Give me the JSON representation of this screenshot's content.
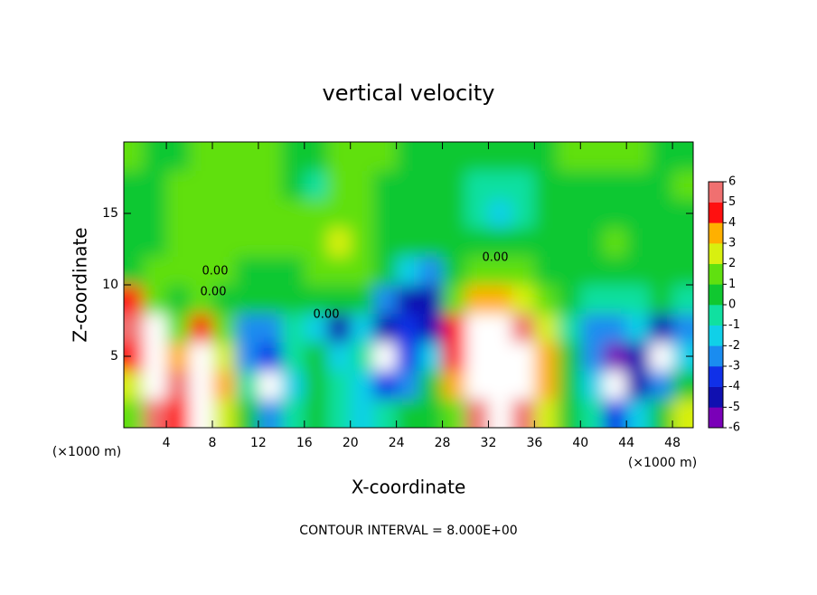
{
  "chart_data": {
    "type": "contour",
    "title": "vertical velocity",
    "xlabel": "X-coordinate",
    "ylabel": "Z-coordinate",
    "x_unit_label": "(×1000 m)",
    "y_unit_label": "(×1000 m)",
    "footnote": "CONTOUR INTERVAL = 8.000E+00",
    "contour_labels": [
      "0.00",
      "0.00",
      "0.00",
      "0.00"
    ],
    "xlim": [
      0.3,
      49.8
    ],
    "ylim": [
      0,
      20
    ],
    "xticks": [
      4,
      8,
      12,
      16,
      20,
      24,
      28,
      32,
      36,
      40,
      44,
      48
    ],
    "yticks": [
      5,
      10,
      15
    ],
    "x": [
      1,
      3,
      5,
      7,
      9,
      11,
      13,
      15,
      17,
      19,
      21,
      23,
      25,
      27,
      29,
      31,
      33,
      35,
      37,
      39,
      41,
      43,
      45,
      47,
      49
    ],
    "y": [
      1,
      3,
      5,
      7,
      9,
      11,
      13,
      15,
      17,
      19
    ],
    "z": [
      [
        1,
        5,
        4,
        8,
        2,
        0,
        -3,
        -1,
        0,
        -1,
        -2,
        -1,
        0,
        0,
        1,
        5,
        9,
        5,
        2,
        0,
        -1,
        -4,
        -2,
        0,
        2
      ],
      [
        2,
        9,
        6,
        9,
        3,
        -1,
        -8,
        -2,
        0,
        -1,
        -2,
        -4,
        -3,
        0,
        3,
        8,
        12,
        9,
        3,
        0,
        -2,
        -8,
        -5,
        -3,
        0
      ],
      [
        4,
        10,
        3,
        8,
        2,
        -3,
        -4,
        -1,
        0,
        -2,
        -1,
        -8,
        -4,
        -2,
        4,
        9,
        12,
        10,
        3,
        0,
        -3,
        -6,
        -5,
        -7,
        -2
      ],
      [
        6,
        8,
        1,
        4,
        1,
        -3,
        -3,
        -1,
        -2,
        -5,
        -2,
        -5,
        -4,
        -5,
        4,
        7,
        9,
        6,
        2,
        -1,
        -3,
        -3,
        -2,
        -5,
        -3
      ],
      [
        4,
        1,
        0,
        1,
        0,
        0,
        0,
        0,
        0,
        0,
        0,
        -3,
        -5,
        -5,
        1,
        3,
        3,
        2,
        1,
        0,
        -1,
        -1,
        -1,
        0,
        -1
      ],
      [
        0,
        1,
        1,
        1,
        1,
        0,
        0,
        0,
        1,
        1,
        1,
        0,
        -2,
        -3,
        0,
        1,
        1,
        1,
        0,
        0,
        0,
        0,
        0,
        0,
        0
      ],
      [
        0,
        0,
        1,
        1,
        1,
        1,
        1,
        1,
        1,
        2,
        1,
        0,
        0,
        0,
        0,
        0,
        0,
        0,
        0,
        0,
        0,
        1,
        0,
        0,
        0
      ],
      [
        0,
        0,
        1,
        1,
        1,
        1,
        1,
        1,
        1,
        1,
        1,
        0,
        0,
        0,
        0,
        -1,
        -2,
        -1,
        0,
        0,
        0,
        0,
        0,
        0,
        0
      ],
      [
        0,
        0,
        1,
        1,
        1,
        1,
        1,
        0,
        -1,
        1,
        1,
        0,
        0,
        0,
        0,
        -1,
        -1,
        -1,
        0,
        0,
        0,
        0,
        0,
        0,
        1
      ],
      [
        1,
        0,
        0,
        1,
        1,
        1,
        1,
        0,
        0,
        1,
        1,
        1,
        0,
        0,
        0,
        0,
        0,
        0,
        0,
        1,
        1,
        1,
        1,
        0,
        0
      ]
    ],
    "colorbar_ticks": [
      -6,
      -5,
      -4,
      -3,
      -2,
      -1,
      0,
      1,
      2,
      3,
      4,
      5,
      6
    ],
    "colors": [
      "#7a00b8",
      "#1010b0",
      "#1030e8",
      "#1a8cf0",
      "#10d0e8",
      "#10e0a0",
      "#10c830",
      "#60e010",
      "#d8f010",
      "#ffb000",
      "#ff1010",
      "#f07070"
    ]
  }
}
